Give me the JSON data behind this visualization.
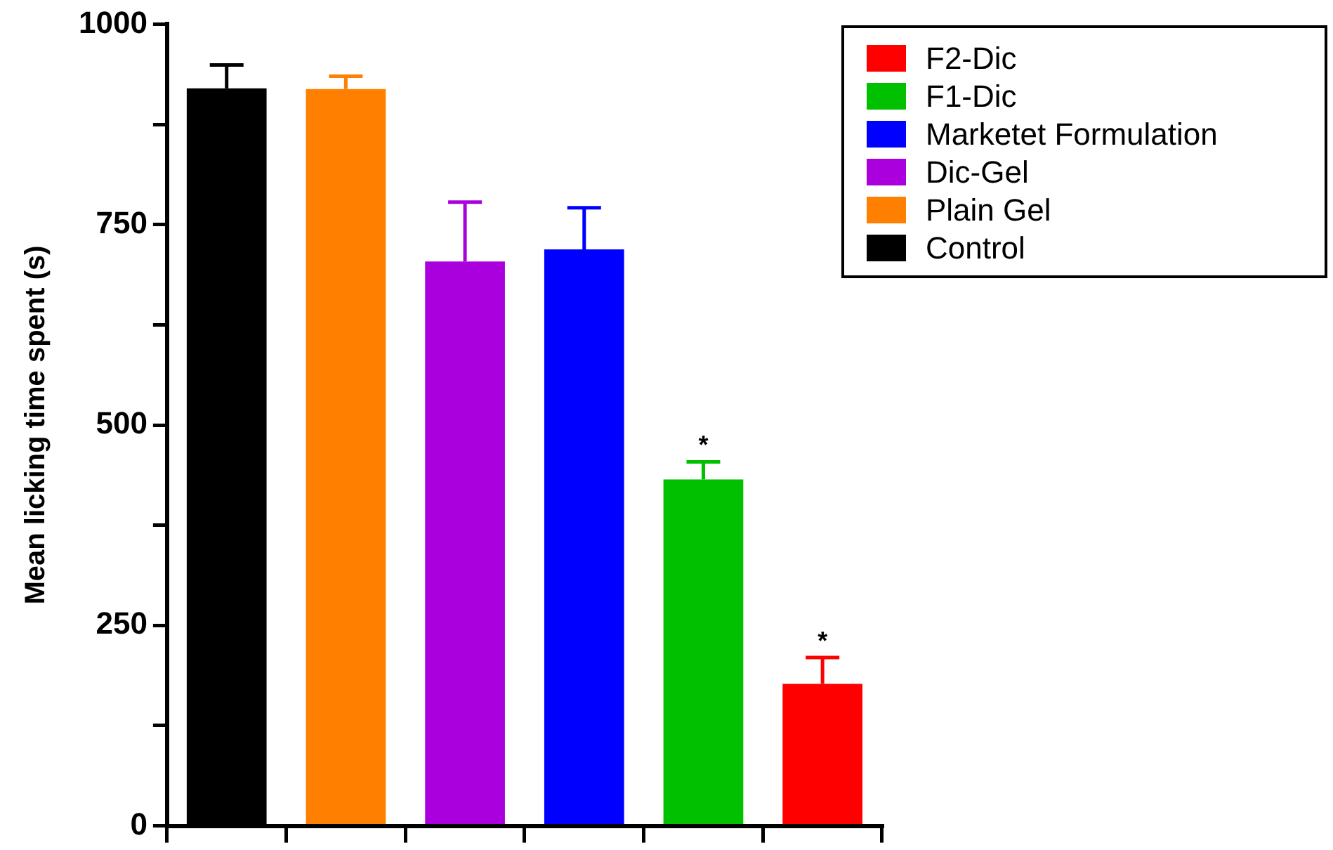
{
  "chart_data": {
    "type": "bar",
    "ylabel": "Mean licking time spent (s)",
    "categories": [
      null,
      null,
      null,
      null,
      null,
      null
    ],
    "series": [
      {
        "name": "Control",
        "color": "#000000",
        "values": [
          920,
          null,
          null,
          null,
          null,
          null
        ],
        "errors": [
          29,
          null,
          null,
          null,
          null,
          null
        ]
      },
      {
        "name": "Plain Gel",
        "color": "#ff8000",
        "values": [
          null,
          919,
          null,
          null,
          null,
          null
        ],
        "errors": [
          null,
          16,
          null,
          null,
          null,
          null
        ]
      },
      {
        "name": "Dic-Gel",
        "color": "#aa00dd",
        "values": [
          null,
          null,
          704,
          null,
          null,
          null
        ],
        "errors": [
          null,
          null,
          74,
          null,
          null,
          null
        ]
      },
      {
        "name": "Marketet Formulation",
        "color": "#0000ff",
        "values": [
          null,
          null,
          null,
          719,
          null,
          null
        ],
        "errors": [
          null,
          null,
          null,
          52,
          null,
          null
        ]
      },
      {
        "name": "F1-Dic",
        "color": "#00c000",
        "values": [
          null,
          null,
          null,
          null,
          432,
          null
        ],
        "errors": [
          null,
          null,
          null,
          null,
          22,
          null
        ],
        "value_labels": [
          null,
          null,
          null,
          null,
          "*",
          null
        ]
      },
      {
        "name": "F2-Dic",
        "color": "#ff0000",
        "values": [
          null,
          null,
          null,
          null,
          null,
          177
        ],
        "errors": [
          null,
          null,
          null,
          null,
          null,
          33
        ],
        "value_labels": [
          null,
          null,
          null,
          null,
          null,
          "*"
        ]
      }
    ],
    "ylim": [
      0,
      1000
    ],
    "yticks": [
      0,
      {
        "value": 125,
        "label": null
      },
      250,
      {
        "value": 375,
        "label": null
      },
      500,
      {
        "value": 625,
        "label": null
      },
      750,
      {
        "value": 875,
        "label": null
      },
      1000
    ],
    "grid": false,
    "legend": "top right",
    "tick_labels": "y"
  }
}
